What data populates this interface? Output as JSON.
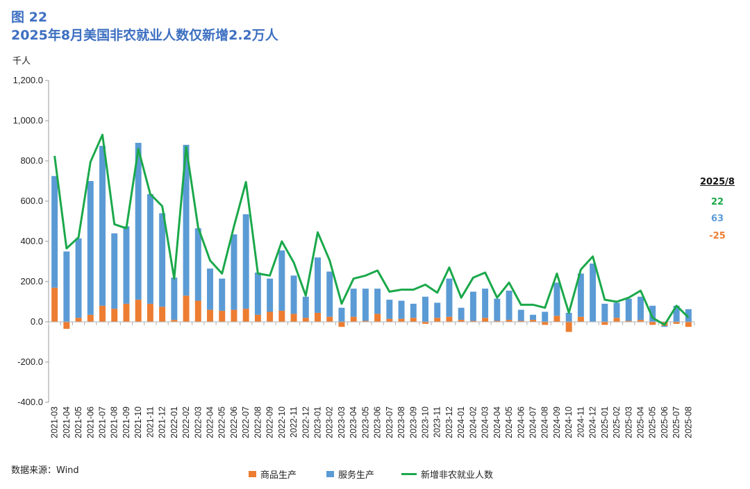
{
  "figure_label": "图 22",
  "chart_data": {
    "type": "bar",
    "title": "2025年8月美国非农就业人数仅新增2.2万人",
    "ylabel": "千人",
    "source": "数据来源：Wind",
    "ylim": [
      -400,
      1200
    ],
    "yticks": [
      1200,
      1000,
      800,
      600,
      400,
      200,
      0,
      -200,
      -400
    ],
    "ytick_labels": [
      "1,200.0",
      "1,000.0",
      "800.0",
      "600.0",
      "400.0",
      "200.0",
      "0.0",
      "-200.0",
      "-400.0"
    ],
    "grid": false,
    "legend_position": "bottom",
    "categories": [
      "2021-03",
      "2021-04",
      "2021-05",
      "2021-06",
      "2021-07",
      "2021-08",
      "2021-09",
      "2021-10",
      "2021-11",
      "2021-12",
      "2022-01",
      "2022-02",
      "2022-03",
      "2022-04",
      "2022-05",
      "2022-06",
      "2022-07",
      "2022-08",
      "2022-09",
      "2022-10",
      "2022-11",
      "2022-12",
      "2023-01",
      "2023-02",
      "2023-03",
      "2023-04",
      "2023-05",
      "2023-06",
      "2023-07",
      "2023-08",
      "2023-09",
      "2023-10",
      "2023-11",
      "2023-12",
      "2024-01",
      "2024-02",
      "2024-03",
      "2024-04",
      "2024-05",
      "2024-06",
      "2024-07",
      "2024-08",
      "2024-09",
      "2024-10",
      "2024-11",
      "2024-12",
      "2025-01",
      "2025-02",
      "2025-03",
      "2025-04",
      "2025-05",
      "2025-06",
      "2025-07",
      "2025-08"
    ],
    "series": [
      {
        "name": "商品生产",
        "kind": "bar",
        "color": "#ed7d31",
        "values": [
          170,
          -35,
          20,
          35,
          80,
          65,
          90,
          110,
          90,
          75,
          10,
          130,
          105,
          60,
          55,
          60,
          65,
          35,
          50,
          55,
          40,
          20,
          45,
          25,
          -25,
          25,
          5,
          40,
          15,
          15,
          20,
          -10,
          20,
          25,
          10,
          5,
          20,
          5,
          10,
          5,
          10,
          -15,
          30,
          -50,
          25,
          0,
          -15,
          20,
          5,
          10,
          -15,
          -20,
          -10,
          -25
        ]
      },
      {
        "name": "服务生产",
        "kind": "bar",
        "color": "#5b9bd5",
        "values": [
          555,
          350,
          395,
          665,
          795,
          375,
          385,
          780,
          545,
          465,
          210,
          750,
          360,
          205,
          160,
          375,
          470,
          210,
          165,
          300,
          190,
          105,
          275,
          225,
          70,
          140,
          160,
          125,
          95,
          90,
          70,
          125,
          75,
          190,
          60,
          145,
          145,
          110,
          145,
          55,
          25,
          50,
          165,
          45,
          215,
          290,
          90,
          75,
          110,
          115,
          80,
          -5,
          80,
          63
        ]
      },
      {
        "name": "新增非农就业人数",
        "kind": "line",
        "color": "#1aa84a",
        "values": [
          825,
          365,
          420,
          795,
          930,
          485,
          465,
          860,
          635,
          575,
          215,
          870,
          470,
          305,
          240,
          475,
          695,
          240,
          230,
          400,
          295,
          130,
          445,
          305,
          90,
          215,
          230,
          255,
          150,
          160,
          160,
          185,
          145,
          270,
          120,
          220,
          245,
          120,
          195,
          85,
          85,
          70,
          240,
          45,
          260,
          325,
          110,
          100,
          120,
          155,
          20,
          -15,
          80,
          22
        ]
      }
    ],
    "annotation": {
      "header": "2025/8",
      "total": "22",
      "services": "63",
      "goods": "-25"
    }
  }
}
